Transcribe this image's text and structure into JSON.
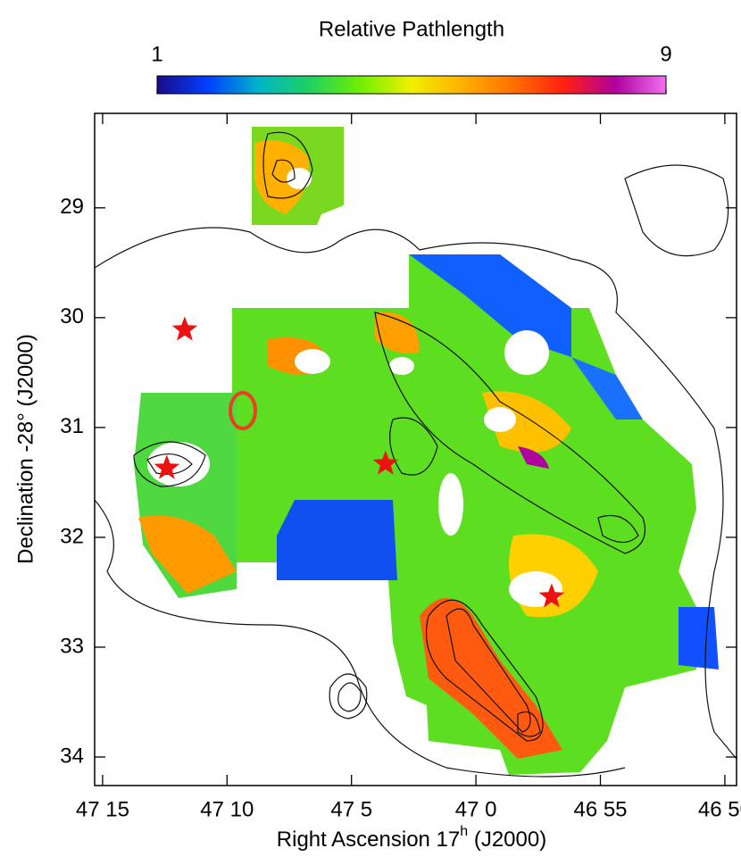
{
  "chart_data": {
    "type": "scatter",
    "colorbar_title": "Relative Pathlength",
    "clim": [
      1,
      9
    ],
    "colorbar_ticks": [
      1,
      9
    ],
    "colormap": [
      "#1a0a8c",
      "#0040ff",
      "#00b4c8",
      "#20d060",
      "#70f000",
      "#f0f000",
      "#ffb000",
      "#ff7000",
      "#ff2010",
      "#b000a0",
      "#f070f0"
    ],
    "xlabel": "Right Ascension   17",
    "xlabel_sup": "h",
    "xlabel_end": " (J2000)",
    "ylabel": "Declination  -28° (J2000)",
    "xlim": [
      2835.32,
      2809.53
    ],
    "xticks": [
      {
        "value": 2835,
        "label": "47 15"
      },
      {
        "value": 2830,
        "label": "47 10"
      },
      {
        "value": 2825,
        "label": "47 5"
      },
      {
        "value": 2820,
        "label": "47 0"
      },
      {
        "value": 2815,
        "label": "46 55"
      },
      {
        "value": 2810,
        "label": "46 50"
      }
    ],
    "ylim": [
      28.14,
      34.26
    ],
    "yticks": [
      29,
      30,
      31,
      32,
      33,
      34
    ],
    "series": [
      {
        "marker": "star",
        "color": "#ee1111",
        "x": [
          2831.7,
          2832.42,
          2823.63,
          2816.96
        ],
        "values": [
          30.11,
          31.37,
          31.33,
          32.54
        ]
      }
    ]
  }
}
